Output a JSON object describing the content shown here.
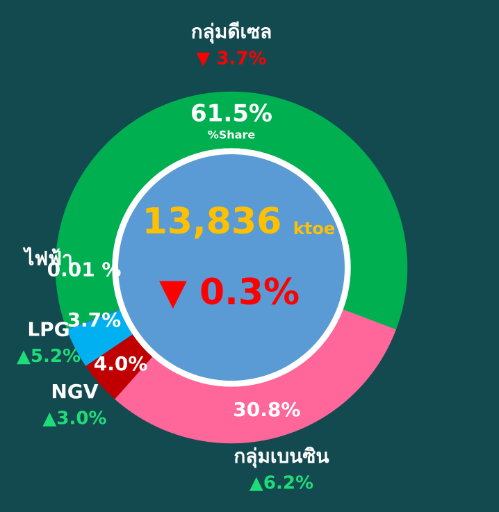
{
  "chart_data": {
    "type": "donut",
    "categories": [
      "กลุ่มดีเซล",
      "กลุ่มเบนซิน",
      "NGV",
      "LPG",
      "ไฟฟ้า"
    ],
    "values": [
      61.5,
      30.8,
      4.0,
      3.7,
      0.01
    ],
    "value_labels": [
      "61.5%",
      "30.8%",
      "4.0%",
      "3.7%",
      "0.01 %"
    ],
    "colors": [
      "#00b050",
      "#ff6699",
      "#c00000",
      "#00b0f0",
      "#7b3fbf"
    ],
    "change_labels": [
      "▼ 3.7%",
      "▲6.2%",
      "▲3.0%",
      "▲5.2%",
      null
    ],
    "change_colors": [
      "#ff0000",
      "#1edc78",
      "#1edc78",
      "#1edc78",
      null
    ],
    "share_label": "%Share",
    "total": "13,836",
    "unit": "ktoe",
    "total_change_label": "▼ 0.3%",
    "total_color": "#ffc000",
    "total_change_color": "#ff0000"
  }
}
